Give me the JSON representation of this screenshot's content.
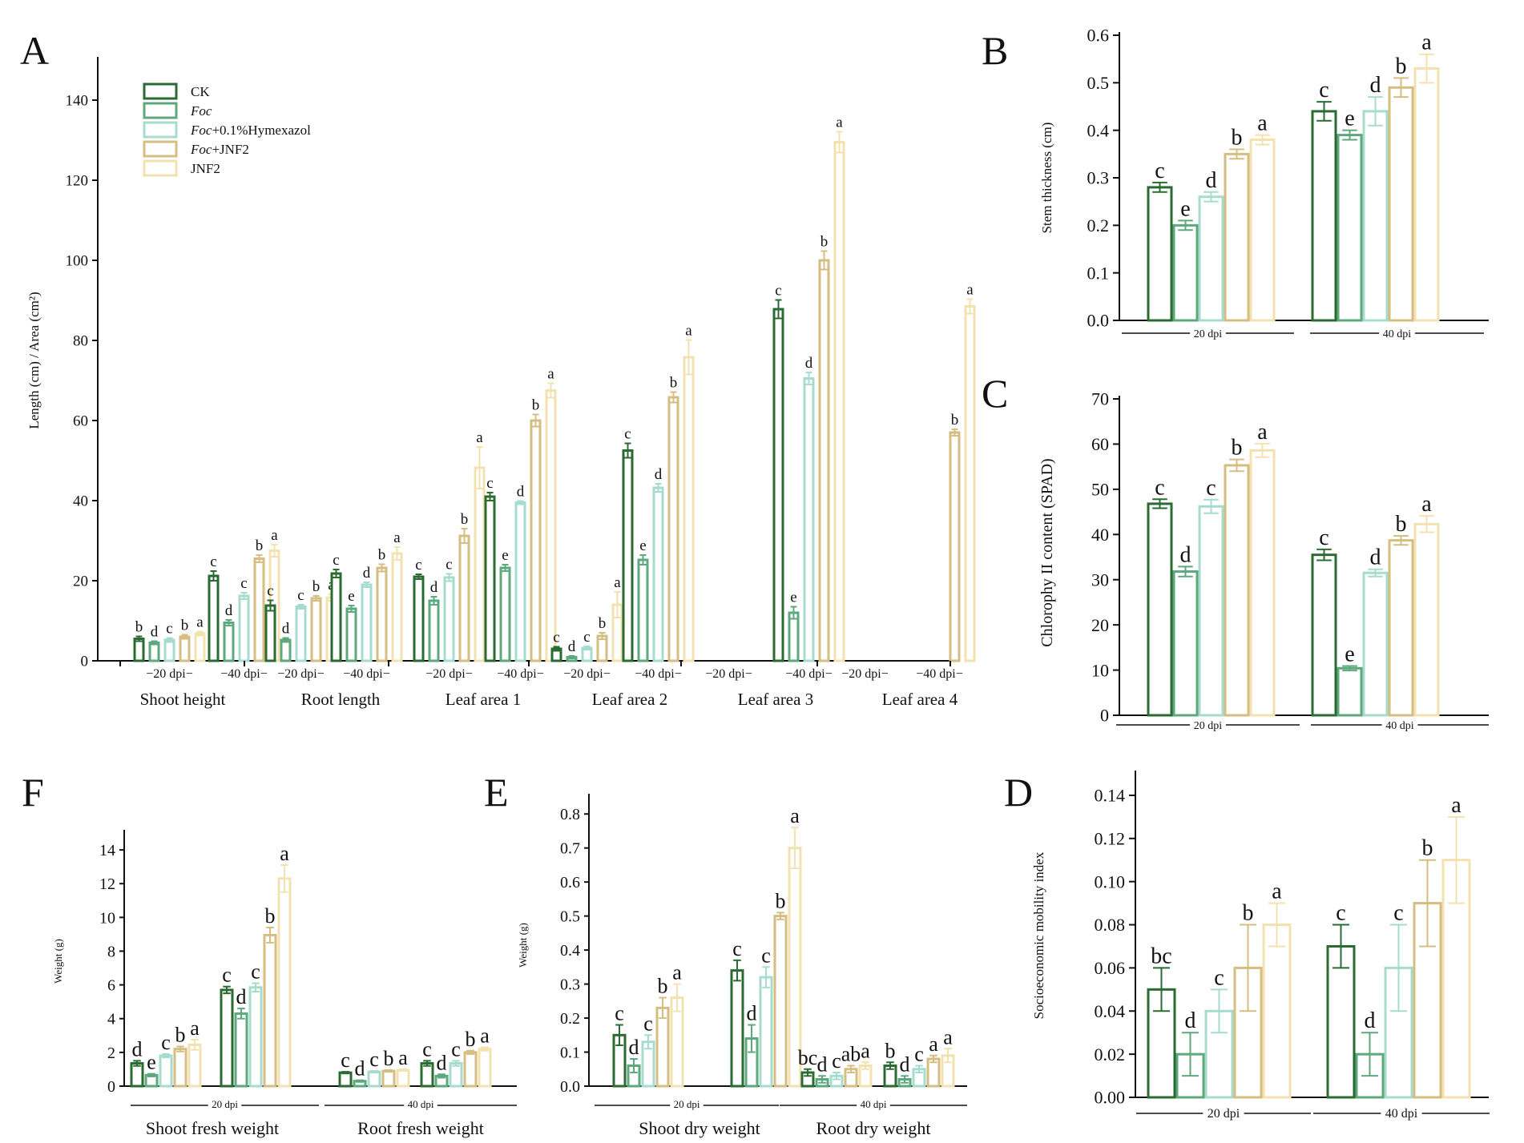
{
  "colors": {
    "CK": "#2a6b31",
    "Foc": "#5da87d",
    "Hym": "#a6dccd",
    "FocJNF2": "#d6bd82",
    "JNF2": "#f3e2b0",
    "axis": "#111111"
  },
  "legend": [
    {
      "key": "CK",
      "parts": [
        {
          "t": "CK",
          "i": false
        }
      ]
    },
    {
      "key": "Foc",
      "parts": [
        {
          "t": "Foc",
          "i": true
        }
      ]
    },
    {
      "key": "Hym",
      "parts": [
        {
          "t": "Foc",
          "i": true
        },
        {
          "t": "+0.1%Hymexazol",
          "i": false
        }
      ]
    },
    {
      "key": "FocJNF2",
      "parts": [
        {
          "t": "Foc",
          "i": true
        },
        {
          "t": "+JNF2",
          "i": false
        }
      ]
    },
    {
      "key": "JNF2",
      "parts": [
        {
          "t": "JNF2",
          "i": false
        }
      ]
    }
  ],
  "chart_data": [
    {
      "id": "A",
      "panel_label": "A",
      "type": "bar",
      "ylabel": "Length (cm) / Area (cm²)",
      "ylim": [
        0,
        150
      ],
      "yticks": [
        0,
        20,
        40,
        60,
        80,
        100,
        120,
        140
      ],
      "groups": [
        "Shoot height",
        "Root length",
        "Leaf area 1",
        "Leaf area 2",
        "Leaf area 3",
        "Leaf area 4"
      ],
      "subgroups": [
        "20 dpi",
        "40 dpi"
      ],
      "series_order": [
        "CK",
        "Foc",
        "Hym",
        "FocJNF2",
        "JNF2"
      ],
      "clusters": [
        {
          "group": 0,
          "sub": 0,
          "values": [
            5.5,
            4.5,
            5.2,
            6.0,
            6.8
          ],
          "err": [
            0.6,
            0.4,
            0.5,
            0.5,
            0.5
          ],
          "letters": [
            "b",
            "d",
            "c",
            "b",
            "a"
          ]
        },
        {
          "group": 0,
          "sub": 1,
          "values": [
            21.2,
            9.5,
            16.2,
            25.5,
            27.5
          ],
          "err": [
            1.2,
            0.7,
            0.8,
            0.9,
            1.5
          ],
          "letters": [
            "c",
            "d",
            "c",
            "b",
            "a"
          ]
        },
        {
          "group": 1,
          "sub": 0,
          "values": [
            13.8,
            5.2,
            13.5,
            15.6,
            15.8
          ],
          "err": [
            1.3,
            0.5,
            0.5,
            0.6,
            0.8
          ],
          "letters": [
            "c",
            "d",
            "c",
            "b",
            "a"
          ]
        },
        {
          "group": 1,
          "sub": 1,
          "values": [
            21.8,
            13.0,
            19.0,
            23.2,
            26.8
          ],
          "err": [
            1.0,
            0.8,
            0.6,
            0.9,
            1.6
          ],
          "letters": [
            "c",
            "e",
            "d",
            "b",
            "a"
          ]
        },
        {
          "group": 2,
          "sub": 0,
          "values": [
            21.0,
            15.0,
            20.8,
            31.2,
            48.2
          ],
          "err": [
            0.6,
            1.0,
            0.9,
            1.8,
            5.2
          ],
          "letters": [
            "c",
            "d",
            "c",
            "b",
            "a"
          ]
        },
        {
          "group": 2,
          "sub": 1,
          "values": [
            41.0,
            23.2,
            39.5,
            60.0,
            67.5
          ],
          "err": [
            1.0,
            0.8,
            0.4,
            1.5,
            1.8
          ],
          "letters": [
            "c",
            "e",
            "d",
            "b",
            "a"
          ]
        },
        {
          "group": 3,
          "sub": 0,
          "values": [
            3.0,
            0.9,
            3.2,
            6.2,
            14.0
          ],
          "err": [
            0.5,
            0.3,
            0.4,
            0.8,
            3.2
          ],
          "letters": [
            "c",
            "d",
            "c",
            "b",
            "a"
          ]
        },
        {
          "group": 3,
          "sub": 1,
          "values": [
            52.5,
            25.2,
            43.2,
            65.8,
            75.8
          ],
          "err": [
            1.8,
            1.2,
            1.0,
            1.3,
            4.3
          ],
          "letters": [
            "c",
            "e",
            "d",
            "b",
            "a"
          ]
        },
        {
          "group": 4,
          "sub": 1,
          "values": [
            87.8,
            12.0,
            70.5,
            100.0,
            129.5
          ],
          "err": [
            2.3,
            1.5,
            1.5,
            2.3,
            2.6
          ],
          "letters": [
            "c",
            "e",
            "d",
            "b",
            "a"
          ]
        },
        {
          "group": 5,
          "sub": 1,
          "values": [
            null,
            null,
            null,
            57.0,
            88.5
          ],
          "err": [
            0,
            0,
            0,
            0.8,
            1.8
          ],
          "letters": [
            "",
            "",
            "",
            "b",
            "a"
          ]
        }
      ]
    },
    {
      "id": "B",
      "panel_label": "B",
      "type": "bar",
      "ylabel": "Stem thickness (cm)",
      "ylim": [
        0,
        0.6
      ],
      "yticks": [
        0.0,
        0.1,
        0.2,
        0.3,
        0.4,
        0.5,
        0.6
      ],
      "tick_decimals": 1,
      "groups": [
        "20 dpi",
        "40 dpi"
      ],
      "series_order": [
        "CK",
        "Foc",
        "Hym",
        "FocJNF2",
        "JNF2"
      ],
      "clusters": [
        {
          "group": 0,
          "values": [
            0.28,
            0.2,
            0.26,
            0.35,
            0.38
          ],
          "err": [
            0.01,
            0.01,
            0.01,
            0.01,
            0.01
          ],
          "letters": [
            "c",
            "e",
            "d",
            "b",
            "a"
          ]
        },
        {
          "group": 1,
          "values": [
            0.44,
            0.39,
            0.44,
            0.49,
            0.53
          ],
          "err": [
            0.02,
            0.01,
            0.03,
            0.02,
            0.03
          ],
          "letters": [
            "c",
            "e",
            "d",
            "b",
            "a"
          ]
        }
      ]
    },
    {
      "id": "C",
      "panel_label": "C",
      "type": "bar",
      "ylabel": "Chlorophy II content (SPAD)",
      "ylim": [
        0,
        70
      ],
      "yticks": [
        0,
        10,
        20,
        30,
        40,
        50,
        60,
        70
      ],
      "tick_decimals": 0,
      "groups": [
        "20 dpi",
        "40 dpi"
      ],
      "series_order": [
        "CK",
        "Foc",
        "Hym",
        "FocJNF2",
        "JNF2"
      ],
      "clusters": [
        {
          "group": 0,
          "values": [
            46.8,
            31.8,
            46.2,
            55.3,
            58.6
          ],
          "err": [
            1.0,
            1.1,
            1.5,
            1.3,
            1.5
          ],
          "letters": [
            "c",
            "d",
            "c",
            "b",
            "a"
          ]
        },
        {
          "group": 1,
          "values": [
            35.5,
            10.4,
            31.5,
            38.7,
            42.3
          ],
          "err": [
            1.2,
            0.5,
            0.8,
            1.0,
            1.8
          ],
          "letters": [
            "c",
            "e",
            "d",
            "b",
            "a"
          ]
        }
      ]
    },
    {
      "id": "D",
      "panel_label": "D",
      "type": "bar",
      "ylabel": "Socioeconomic mobility index",
      "ylim": [
        0,
        0.15
      ],
      "yticks": [
        0.0,
        0.02,
        0.04,
        0.06,
        0.08,
        0.1,
        0.12,
        0.14
      ],
      "tick_decimals": 2,
      "groups": [
        "20 dpi",
        "40 dpi"
      ],
      "series_order": [
        "CK",
        "Foc",
        "Hym",
        "FocJNF2",
        "JNF2"
      ],
      "clusters": [
        {
          "group": 0,
          "values": [
            0.05,
            0.02,
            0.04,
            0.06,
            0.08
          ],
          "err": [
            0.01,
            0.01,
            0.01,
            0.02,
            0.01
          ],
          "letters": [
            "bc",
            "d",
            "c",
            "b",
            "a"
          ]
        },
        {
          "group": 1,
          "values": [
            0.07,
            0.02,
            0.06,
            0.09,
            0.11
          ],
          "err": [
            0.01,
            0.01,
            0.02,
            0.02,
            0.02
          ],
          "letters": [
            "c",
            "d",
            "c",
            "b",
            "a"
          ]
        }
      ]
    },
    {
      "id": "E",
      "panel_label": "E",
      "type": "bar",
      "ylabel": "Weight (g)",
      "ylim": [
        0,
        0.85
      ],
      "yticks": [
        0.0,
        0.1,
        0.2,
        0.3,
        0.4,
        0.5,
        0.6,
        0.7,
        0.8
      ],
      "tick_decimals": 1,
      "groups": [
        "Shoot dry weight",
        "Root dry weight"
      ],
      "subgroups": [
        "20 dpi",
        "40 dpi"
      ],
      "series_order": [
        "CK",
        "Foc",
        "Hym",
        "FocJNF2",
        "JNF2"
      ],
      "clusters": [
        {
          "group": 0,
          "sub": 0,
          "values": [
            0.15,
            0.06,
            0.13,
            0.23,
            0.26
          ],
          "err": [
            0.03,
            0.02,
            0.02,
            0.03,
            0.04
          ],
          "letters": [
            "c",
            "d",
            "c",
            "b",
            "a"
          ]
        },
        {
          "group": 0,
          "sub": 1,
          "values": [
            0.34,
            0.14,
            0.32,
            0.5,
            0.7
          ],
          "err": [
            0.03,
            0.04,
            0.03,
            0.01,
            0.06
          ],
          "letters": [
            "c",
            "d",
            "c",
            "b",
            "a"
          ]
        },
        {
          "group": 1,
          "sub": 0,
          "values": [
            0.04,
            0.02,
            0.03,
            0.05,
            0.06
          ],
          "err": [
            0.01,
            0.01,
            0.01,
            0.01,
            0.01
          ],
          "letters": [
            "bc",
            "d",
            "c",
            "ab",
            "a"
          ]
        },
        {
          "group": 1,
          "sub": 1,
          "values": [
            0.06,
            0.02,
            0.05,
            0.08,
            0.09
          ],
          "err": [
            0.01,
            0.01,
            0.01,
            0.01,
            0.02
          ],
          "letters": [
            "b",
            "d",
            "c",
            "a",
            "a"
          ]
        }
      ]
    },
    {
      "id": "F",
      "panel_label": "F",
      "type": "bar",
      "ylabel": "Weight (g)",
      "ylim": [
        0,
        15
      ],
      "yticks": [
        0,
        2,
        4,
        6,
        8,
        10,
        12,
        14
      ],
      "tick_decimals": 0,
      "groups": [
        "Shoot fresh weight",
        "Root fresh weight"
      ],
      "subgroups": [
        "20 dpi",
        "40 dpi"
      ],
      "series_order": [
        "CK",
        "Foc",
        "Hym",
        "FocJNF2",
        "JNF2"
      ],
      "clusters": [
        {
          "group": 0,
          "sub": 0,
          "values": [
            1.35,
            0.65,
            1.8,
            2.2,
            2.45
          ],
          "err": [
            0.15,
            0.08,
            0.1,
            0.15,
            0.3
          ],
          "letters": [
            "d",
            "e",
            "c",
            "b",
            "a"
          ]
        },
        {
          "group": 0,
          "sub": 1,
          "values": [
            5.7,
            4.3,
            5.85,
            8.95,
            12.3
          ],
          "err": [
            0.2,
            0.3,
            0.25,
            0.45,
            0.8
          ],
          "letters": [
            "c",
            "d",
            "c",
            "b",
            "a"
          ]
        },
        {
          "group": 1,
          "sub": 0,
          "values": [
            0.8,
            0.3,
            0.85,
            0.9,
            0.95
          ],
          "err": [
            0.05,
            0.05,
            0.05,
            0.05,
            0.05
          ],
          "letters": [
            "c",
            "d",
            "c",
            "b",
            "a"
          ]
        },
        {
          "group": 1,
          "sub": 1,
          "values": [
            1.35,
            0.6,
            1.35,
            2.0,
            2.2
          ],
          "err": [
            0.15,
            0.1,
            0.15,
            0.1,
            0.1
          ],
          "letters": [
            "c",
            "d",
            "c",
            "b",
            "a"
          ]
        }
      ]
    }
  ]
}
